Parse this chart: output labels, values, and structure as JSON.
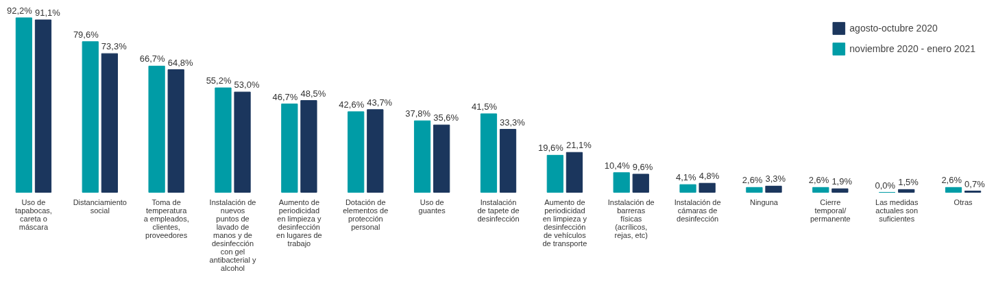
{
  "chart_data": {
    "type": "bar",
    "categories": [
      "Uso de\ntapabocas,\ncareta o\nmáscara",
      "Distanciamiento\nsocial",
      "Toma de\ntemperatura\na empleados,\nclientes,\nproveedores",
      "Instalación de\nnuevos\npuntos de\nlavado de\nmanos y de\ndesinfección\ncon gel\nantibacterial y\nalcohol",
      "Aumento de\nperiodicidad\nen limpieza y\ndesinfección\nen lugares de\ntrabajo",
      "Dotación de\nelementos de\nprotección\npersonal",
      "Uso de\nguantes",
      "Instalación\nde tapete de\ndesinfección",
      "Aumento de\nperiodicidad\nen limpieza y\ndesinfección\nde vehículos\nde transporte",
      "Instalación de\nbarreras\nfísicas\n(acrílicos,\nrejas, etc)",
      "Instalación de\ncámaras de\ndesinfección",
      "Ninguna",
      "Cierre\ntemporal/\npermanente",
      "Las medidas\nactuales son\nsuficientes",
      "Otras"
    ],
    "series": [
      {
        "name": "agosto-octubre 2020",
        "color": "#1b365d",
        "values": [
          91.1,
          73.3,
          64.8,
          53.0,
          48.5,
          43.7,
          35.6,
          33.3,
          21.1,
          9.6,
          4.8,
          3.3,
          1.9,
          1.5,
          0.7
        ],
        "value_labels": [
          "91,1%",
          "73,3%",
          "64,8%",
          "53,0%",
          "48,5%",
          "43,7%",
          "35,6%",
          "33,3%",
          "21,1%",
          "9,6%",
          "4,8%",
          "3,3%",
          "1,9%",
          "1,5%",
          "0,7%"
        ]
      },
      {
        "name": "noviembre 2020 - enero 2021",
        "color": "#009ca6",
        "values": [
          92.2,
          79.6,
          66.7,
          55.2,
          46.7,
          42.6,
          37.8,
          41.5,
          19.6,
          10.4,
          4.1,
          2.6,
          2.6,
          0.0,
          2.6
        ],
        "value_labels": [
          "92,2%",
          "79,6%",
          "66,7%",
          "55,2%",
          "46,7%",
          "42,6%",
          "37,8%",
          "41,5%",
          "19,6%",
          "10,4%",
          "4,1%",
          "2,6%",
          "2,6%",
          "0,0%",
          "2,6%"
        ]
      }
    ],
    "legend": "top right"
  }
}
